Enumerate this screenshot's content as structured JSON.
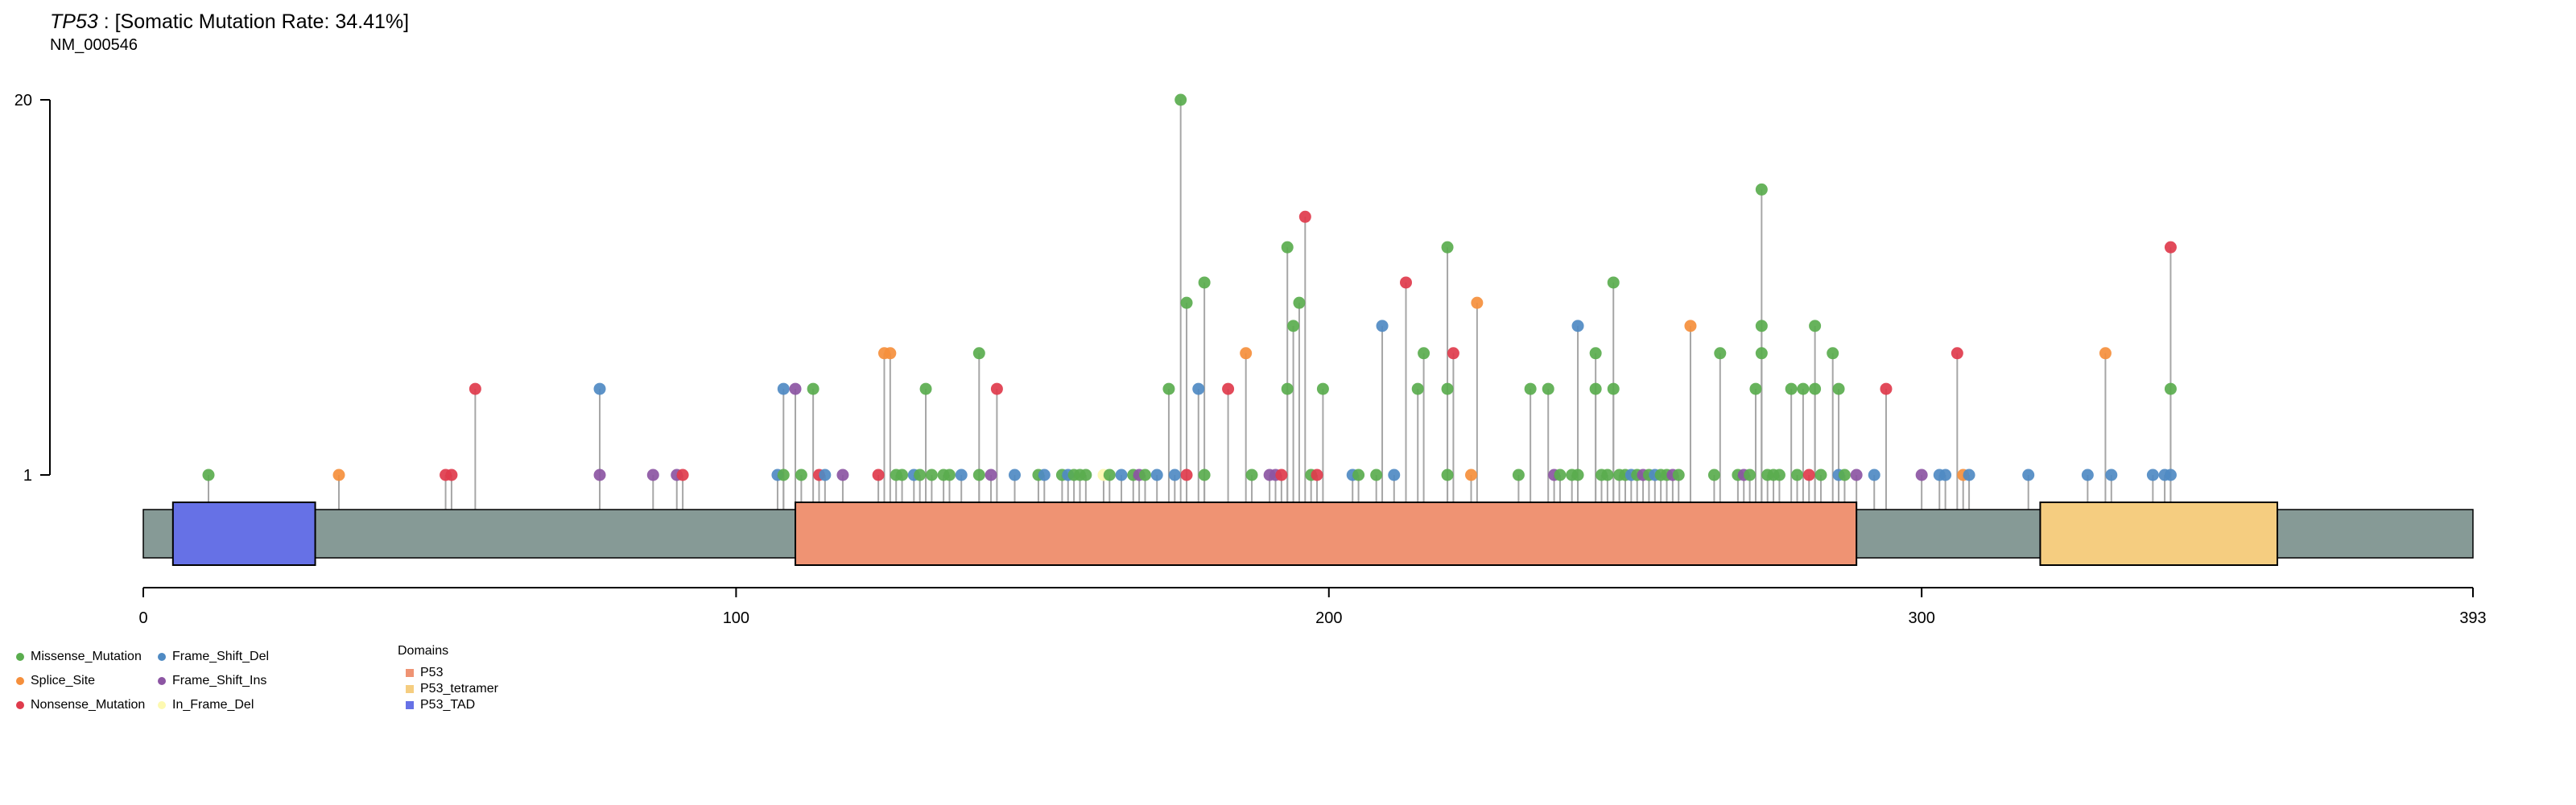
{
  "title": {
    "gene": "TP53",
    "rest": " : [Somatic Mutation Rate: 34.41%]",
    "transcript": "NM_000546"
  },
  "colors": {
    "Missense_Mutation": "#5aad4e",
    "Splice_Site": "#f58f3c",
    "Nonsense_Mutation": "#df3b4c",
    "Frame_Shift_Del": "#4f8ac3",
    "Frame_Shift_Ins": "#8c55a3",
    "In_Frame_Del": "#fdf9b0",
    "backbone": "#869a96",
    "stem": "#a6a6a6"
  },
  "legend": {
    "variants": [
      "Missense_Mutation",
      "Splice_Site",
      "Nonsense_Mutation",
      "Frame_Shift_Del",
      "Frame_Shift_Ins",
      "In_Frame_Del"
    ],
    "domains_title": "Domains",
    "domains": [
      {
        "name": "P53",
        "color": "#ef9373"
      },
      {
        "name": "P53_tetramer",
        "color": "#f5cd80"
      },
      {
        "name": "P53_TAD",
        "color": "#6671e6"
      }
    ]
  },
  "chart_data": {
    "type": "lollipop",
    "protein_length": 393,
    "xaxis_ticks": [
      0,
      100,
      200,
      300,
      393
    ],
    "yaxis_ticks": [
      1,
      20
    ],
    "yaxis_scale": "compressed",
    "domains": [
      {
        "name": "P53_TAD",
        "start": 5,
        "end": 29
      },
      {
        "name": "P53",
        "start": 110,
        "end": 289
      },
      {
        "name": "P53_tetramer",
        "start": 320,
        "end": 360
      }
    ],
    "mutations": [
      {
        "pos": 11,
        "count": 1,
        "type": "Missense_Mutation"
      },
      {
        "pos": 33,
        "count": 1,
        "type": "Splice_Site"
      },
      {
        "pos": 51,
        "count": 1,
        "type": "Nonsense_Mutation"
      },
      {
        "pos": 52,
        "count": 1,
        "type": "Nonsense_Mutation"
      },
      {
        "pos": 56,
        "count": 2,
        "type": "Nonsense_Mutation"
      },
      {
        "pos": 77,
        "count": 1,
        "type": "Frame_Shift_Ins"
      },
      {
        "pos": 77,
        "count": 2,
        "type": "Frame_Shift_Del"
      },
      {
        "pos": 86,
        "count": 1,
        "type": "Frame_Shift_Ins"
      },
      {
        "pos": 90,
        "count": 1,
        "type": "Frame_Shift_Ins"
      },
      {
        "pos": 91,
        "count": 1,
        "type": "Nonsense_Mutation"
      },
      {
        "pos": 107,
        "count": 1,
        "type": "Frame_Shift_Del"
      },
      {
        "pos": 108,
        "count": 1,
        "type": "Missense_Mutation"
      },
      {
        "pos": 108,
        "count": 2,
        "type": "Frame_Shift_Del"
      },
      {
        "pos": 110,
        "count": 2,
        "type": "Frame_Shift_Ins"
      },
      {
        "pos": 111,
        "count": 1,
        "type": "Missense_Mutation"
      },
      {
        "pos": 113,
        "count": 2,
        "type": "Missense_Mutation"
      },
      {
        "pos": 114,
        "count": 1,
        "type": "Nonsense_Mutation"
      },
      {
        "pos": 115,
        "count": 1,
        "type": "Frame_Shift_Del"
      },
      {
        "pos": 118,
        "count": 1,
        "type": "Frame_Shift_Ins"
      },
      {
        "pos": 124,
        "count": 1,
        "type": "Nonsense_Mutation"
      },
      {
        "pos": 125,
        "count": 3,
        "type": "Splice_Site"
      },
      {
        "pos": 126,
        "count": 3,
        "type": "Splice_Site"
      },
      {
        "pos": 127,
        "count": 1,
        "type": "Missense_Mutation"
      },
      {
        "pos": 128,
        "count": 1,
        "type": "Missense_Mutation"
      },
      {
        "pos": 130,
        "count": 1,
        "type": "Frame_Shift_Del"
      },
      {
        "pos": 131,
        "count": 1,
        "type": "Missense_Mutation"
      },
      {
        "pos": 132,
        "count": 2,
        "type": "Missense_Mutation"
      },
      {
        "pos": 133,
        "count": 1,
        "type": "Missense_Mutation"
      },
      {
        "pos": 135,
        "count": 1,
        "type": "Missense_Mutation"
      },
      {
        "pos": 136,
        "count": 1,
        "type": "Missense_Mutation"
      },
      {
        "pos": 138,
        "count": 1,
        "type": "Frame_Shift_Del"
      },
      {
        "pos": 141,
        "count": 3,
        "type": "Missense_Mutation"
      },
      {
        "pos": 141,
        "count": 1,
        "type": "Missense_Mutation"
      },
      {
        "pos": 143,
        "count": 1,
        "type": "Frame_Shift_Ins"
      },
      {
        "pos": 144,
        "count": 2,
        "type": "Nonsense_Mutation"
      },
      {
        "pos": 147,
        "count": 1,
        "type": "Frame_Shift_Del"
      },
      {
        "pos": 151,
        "count": 1,
        "type": "Missense_Mutation"
      },
      {
        "pos": 152,
        "count": 1,
        "type": "Frame_Shift_Del"
      },
      {
        "pos": 155,
        "count": 1,
        "type": "Missense_Mutation"
      },
      {
        "pos": 156,
        "count": 1,
        "type": "Frame_Shift_Del"
      },
      {
        "pos": 157,
        "count": 1,
        "type": "Missense_Mutation"
      },
      {
        "pos": 158,
        "count": 1,
        "type": "Missense_Mutation"
      },
      {
        "pos": 159,
        "count": 1,
        "type": "Missense_Mutation"
      },
      {
        "pos": 162,
        "count": 1,
        "type": "In_Frame_Del"
      },
      {
        "pos": 163,
        "count": 1,
        "type": "Missense_Mutation"
      },
      {
        "pos": 165,
        "count": 1,
        "type": "Frame_Shift_Del"
      },
      {
        "pos": 167,
        "count": 1,
        "type": "Missense_Mutation"
      },
      {
        "pos": 168,
        "count": 1,
        "type": "Frame_Shift_Ins"
      },
      {
        "pos": 169,
        "count": 1,
        "type": "Missense_Mutation"
      },
      {
        "pos": 171,
        "count": 1,
        "type": "Frame_Shift_Del"
      },
      {
        "pos": 173,
        "count": 2,
        "type": "Missense_Mutation"
      },
      {
        "pos": 174,
        "count": 1,
        "type": "Frame_Shift_Del"
      },
      {
        "pos": 175,
        "count": 20,
        "type": "Missense_Mutation"
      },
      {
        "pos": 176,
        "count": 1,
        "type": "Nonsense_Mutation"
      },
      {
        "pos": 176,
        "count": 5,
        "type": "Missense_Mutation"
      },
      {
        "pos": 178,
        "count": 2,
        "type": "Frame_Shift_Del"
      },
      {
        "pos": 179,
        "count": 6,
        "type": "Missense_Mutation"
      },
      {
        "pos": 179,
        "count": 1,
        "type": "Missense_Mutation"
      },
      {
        "pos": 183,
        "count": 2,
        "type": "Nonsense_Mutation"
      },
      {
        "pos": 186,
        "count": 3,
        "type": "Splice_Site"
      },
      {
        "pos": 187,
        "count": 1,
        "type": "Missense_Mutation"
      },
      {
        "pos": 190,
        "count": 1,
        "type": "Frame_Shift_Ins"
      },
      {
        "pos": 191,
        "count": 1,
        "type": "Frame_Shift_Ins"
      },
      {
        "pos": 192,
        "count": 1,
        "type": "Nonsense_Mutation"
      },
      {
        "pos": 193,
        "count": 8,
        "type": "Missense_Mutation"
      },
      {
        "pos": 193,
        "count": 2,
        "type": "Missense_Mutation"
      },
      {
        "pos": 194,
        "count": 4,
        "type": "Missense_Mutation"
      },
      {
        "pos": 195,
        "count": 5,
        "type": "Missense_Mutation"
      },
      {
        "pos": 196,
        "count": 10,
        "type": "Nonsense_Mutation"
      },
      {
        "pos": 197,
        "count": 1,
        "type": "Missense_Mutation"
      },
      {
        "pos": 198,
        "count": 1,
        "type": "Nonsense_Mutation"
      },
      {
        "pos": 199,
        "count": 2,
        "type": "Missense_Mutation"
      },
      {
        "pos": 204,
        "count": 1,
        "type": "Frame_Shift_Del"
      },
      {
        "pos": 205,
        "count": 1,
        "type": "Missense_Mutation"
      },
      {
        "pos": 208,
        "count": 1,
        "type": "Missense_Mutation"
      },
      {
        "pos": 209,
        "count": 4,
        "type": "Frame_Shift_Del"
      },
      {
        "pos": 211,
        "count": 1,
        "type": "Frame_Shift_Del"
      },
      {
        "pos": 213,
        "count": 6,
        "type": "Nonsense_Mutation"
      },
      {
        "pos": 215,
        "count": 2,
        "type": "Missense_Mutation"
      },
      {
        "pos": 216,
        "count": 3,
        "type": "Missense_Mutation"
      },
      {
        "pos": 220,
        "count": 8,
        "type": "Missense_Mutation"
      },
      {
        "pos": 220,
        "count": 2,
        "type": "Missense_Mutation"
      },
      {
        "pos": 220,
        "count": 1,
        "type": "Missense_Mutation"
      },
      {
        "pos": 221,
        "count": 3,
        "type": "Nonsense_Mutation"
      },
      {
        "pos": 224,
        "count": 1,
        "type": "Splice_Site"
      },
      {
        "pos": 225,
        "count": 5,
        "type": "Splice_Site"
      },
      {
        "pos": 232,
        "count": 1,
        "type": "Missense_Mutation"
      },
      {
        "pos": 234,
        "count": 2,
        "type": "Missense_Mutation"
      },
      {
        "pos": 237,
        "count": 2,
        "type": "Missense_Mutation"
      },
      {
        "pos": 238,
        "count": 1,
        "type": "Frame_Shift_Ins"
      },
      {
        "pos": 239,
        "count": 1,
        "type": "Missense_Mutation"
      },
      {
        "pos": 241,
        "count": 1,
        "type": "Missense_Mutation"
      },
      {
        "pos": 242,
        "count": 4,
        "type": "Frame_Shift_Del"
      },
      {
        "pos": 242,
        "count": 1,
        "type": "Missense_Mutation"
      },
      {
        "pos": 245,
        "count": 3,
        "type": "Missense_Mutation"
      },
      {
        "pos": 245,
        "count": 2,
        "type": "Missense_Mutation"
      },
      {
        "pos": 246,
        "count": 1,
        "type": "Missense_Mutation"
      },
      {
        "pos": 247,
        "count": 1,
        "type": "Missense_Mutation"
      },
      {
        "pos": 248,
        "count": 6,
        "type": "Missense_Mutation"
      },
      {
        "pos": 248,
        "count": 2,
        "type": "Missense_Mutation"
      },
      {
        "pos": 249,
        "count": 1,
        "type": "Missense_Mutation"
      },
      {
        "pos": 250,
        "count": 1,
        "type": "Missense_Mutation"
      },
      {
        "pos": 251,
        "count": 1,
        "type": "Frame_Shift_Del"
      },
      {
        "pos": 252,
        "count": 1,
        "type": "Missense_Mutation"
      },
      {
        "pos": 253,
        "count": 1,
        "type": "Frame_Shift_Ins"
      },
      {
        "pos": 254,
        "count": 1,
        "type": "Missense_Mutation"
      },
      {
        "pos": 255,
        "count": 1,
        "type": "Frame_Shift_Del"
      },
      {
        "pos": 256,
        "count": 1,
        "type": "Missense_Mutation"
      },
      {
        "pos": 257,
        "count": 1,
        "type": "Missense_Mutation"
      },
      {
        "pos": 258,
        "count": 1,
        "type": "Frame_Shift_Ins"
      },
      {
        "pos": 259,
        "count": 1,
        "type": "Missense_Mutation"
      },
      {
        "pos": 261,
        "count": 4,
        "type": "Splice_Site"
      },
      {
        "pos": 265,
        "count": 1,
        "type": "Missense_Mutation"
      },
      {
        "pos": 266,
        "count": 3,
        "type": "Missense_Mutation"
      },
      {
        "pos": 269,
        "count": 1,
        "type": "Missense_Mutation"
      },
      {
        "pos": 270,
        "count": 1,
        "type": "Frame_Shift_Ins"
      },
      {
        "pos": 271,
        "count": 1,
        "type": "Missense_Mutation"
      },
      {
        "pos": 272,
        "count": 2,
        "type": "Missense_Mutation"
      },
      {
        "pos": 273,
        "count": 12,
        "type": "Missense_Mutation"
      },
      {
        "pos": 273,
        "count": 4,
        "type": "Missense_Mutation"
      },
      {
        "pos": 273,
        "count": 3,
        "type": "Missense_Mutation"
      },
      {
        "pos": 274,
        "count": 1,
        "type": "Missense_Mutation"
      },
      {
        "pos": 275,
        "count": 1,
        "type": "Missense_Mutation"
      },
      {
        "pos": 276,
        "count": 1,
        "type": "Missense_Mutation"
      },
      {
        "pos": 278,
        "count": 2,
        "type": "Missense_Mutation"
      },
      {
        "pos": 279,
        "count": 1,
        "type": "Missense_Mutation"
      },
      {
        "pos": 280,
        "count": 2,
        "type": "Missense_Mutation"
      },
      {
        "pos": 281,
        "count": 1,
        "type": "Nonsense_Mutation"
      },
      {
        "pos": 282,
        "count": 4,
        "type": "Missense_Mutation"
      },
      {
        "pos": 282,
        "count": 2,
        "type": "Missense_Mutation"
      },
      {
        "pos": 283,
        "count": 1,
        "type": "Missense_Mutation"
      },
      {
        "pos": 285,
        "count": 3,
        "type": "Missense_Mutation"
      },
      {
        "pos": 286,
        "count": 1,
        "type": "Frame_Shift_Del"
      },
      {
        "pos": 286,
        "count": 2,
        "type": "Missense_Mutation"
      },
      {
        "pos": 287,
        "count": 1,
        "type": "Missense_Mutation"
      },
      {
        "pos": 289,
        "count": 1,
        "type": "Frame_Shift_Ins"
      },
      {
        "pos": 292,
        "count": 1,
        "type": "Frame_Shift_Del"
      },
      {
        "pos": 294,
        "count": 2,
        "type": "Nonsense_Mutation"
      },
      {
        "pos": 300,
        "count": 1,
        "type": "Frame_Shift_Ins"
      },
      {
        "pos": 303,
        "count": 1,
        "type": "Frame_Shift_Del"
      },
      {
        "pos": 304,
        "count": 1,
        "type": "Frame_Shift_Del"
      },
      {
        "pos": 306,
        "count": 3,
        "type": "Nonsense_Mutation"
      },
      {
        "pos": 307,
        "count": 1,
        "type": "Splice_Site"
      },
      {
        "pos": 308,
        "count": 1,
        "type": "Frame_Shift_Del"
      },
      {
        "pos": 318,
        "count": 1,
        "type": "Frame_Shift_Del"
      },
      {
        "pos": 328,
        "count": 1,
        "type": "Frame_Shift_Del"
      },
      {
        "pos": 331,
        "count": 3,
        "type": "Splice_Site"
      },
      {
        "pos": 332,
        "count": 1,
        "type": "Frame_Shift_Del"
      },
      {
        "pos": 339,
        "count": 1,
        "type": "Frame_Shift_Del"
      },
      {
        "pos": 341,
        "count": 1,
        "type": "Frame_Shift_Del"
      },
      {
        "pos": 342,
        "count": 8,
        "type": "Nonsense_Mutation"
      },
      {
        "pos": 342,
        "count": 2,
        "type": "Missense_Mutation"
      },
      {
        "pos": 342,
        "count": 1,
        "type": "Frame_Shift_Del"
      }
    ]
  }
}
